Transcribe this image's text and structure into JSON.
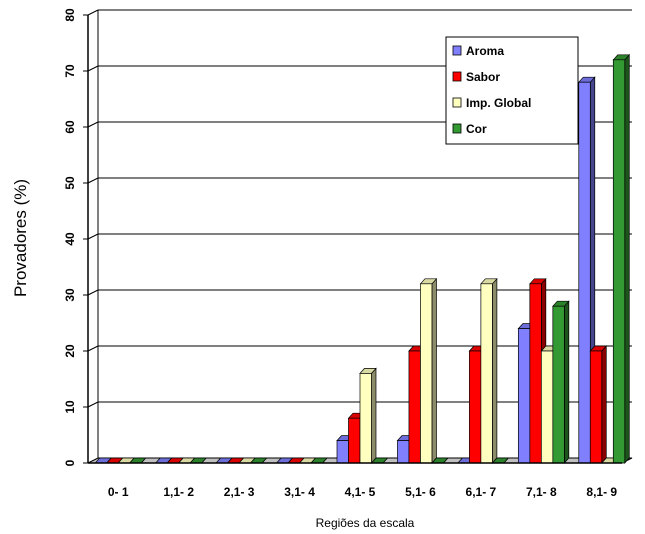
{
  "chart_data": {
    "type": "bar",
    "title": "",
    "xlabel": "Regiões da escala",
    "ylabel": "Provadores (%)",
    "ylim": [
      0,
      80
    ],
    "yticks": [
      "0",
      "10",
      "20",
      "30",
      "40",
      "50",
      "60",
      "70",
      "80"
    ],
    "categories": [
      "0- 1",
      "1,1- 2",
      "2,1- 3",
      "3,1- 4",
      "4,1- 5",
      "5,1- 6",
      "6,1- 7",
      "7,1- 8",
      "8,1- 9"
    ],
    "grid": true,
    "legend_position": "top-right",
    "series": [
      {
        "name": "Aroma",
        "color": "#8080ff",
        "values": [
          0,
          0,
          0,
          0,
          4,
          4,
          0,
          24,
          68
        ]
      },
      {
        "name": "Sabor",
        "color": "#ff0000",
        "values": [
          0,
          0,
          0,
          0,
          8,
          20,
          20,
          32,
          20
        ]
      },
      {
        "name": "Imp. Global",
        "color": "#ffffc0",
        "values": [
          0,
          0,
          0,
          0,
          16,
          32,
          32,
          20,
          0
        ]
      },
      {
        "name": "Cor",
        "color": "#339933",
        "values": [
          0,
          0,
          0,
          0,
          0,
          0,
          0,
          28,
          72
        ]
      }
    ]
  }
}
